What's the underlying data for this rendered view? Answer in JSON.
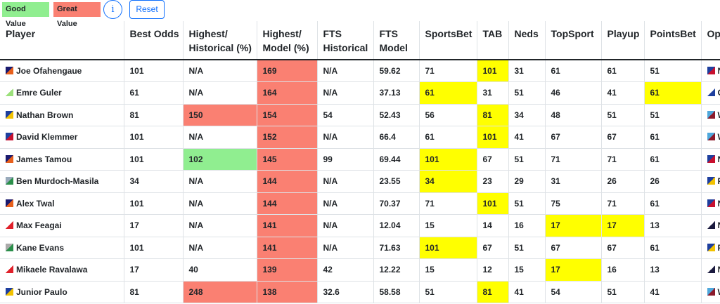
{
  "legend": {
    "good": "Good Value",
    "great": "Great Value"
  },
  "buttons": {
    "info": "i",
    "reset": "Reset"
  },
  "table": {
    "headers": [
      "Player",
      "Best Odds",
      "Highest/\nHistorical (%)",
      "Highest/\nModel (%)",
      "FTS\nHistorical",
      "FTS\nModel",
      "SportsBet",
      "TAB",
      "Neds",
      "TopSport",
      "Playup",
      "PointsBet",
      "Op"
    ],
    "rows": [
      {
        "cells": [
          "Joe Ofahengaue",
          101,
          "N/A",
          169,
          "N/A",
          59.62,
          71,
          101,
          31,
          61,
          61,
          51,
          "N"
        ],
        "great": [
          3
        ],
        "best": [
          7
        ]
      },
      {
        "cells": [
          "Emre Guler",
          61,
          "N/A",
          164,
          "N/A",
          37.13,
          61,
          31,
          51,
          46,
          41,
          61,
          "C"
        ],
        "great": [
          3
        ],
        "best": [
          6,
          11
        ]
      },
      {
        "cells": [
          "Nathan Brown",
          81,
          150,
          154,
          54,
          52.43,
          56,
          81,
          34,
          48,
          51,
          51,
          "W"
        ],
        "great": [
          2,
          3
        ],
        "best": [
          7
        ]
      },
      {
        "cells": [
          "David Klemmer",
          101,
          "N/A",
          152,
          "N/A",
          66.4,
          61,
          101,
          41,
          67,
          67,
          61,
          "W"
        ],
        "great": [
          3
        ],
        "best": [
          7
        ]
      },
      {
        "cells": [
          "James Tamou",
          101,
          102,
          145,
          99,
          69.44,
          101,
          67,
          51,
          71,
          71,
          61,
          "N"
        ],
        "good": [
          2
        ],
        "great": [
          3
        ],
        "best": [
          6
        ]
      },
      {
        "cells": [
          "Ben Murdoch-Masila",
          34,
          "N/A",
          144,
          "N/A",
          23.55,
          34,
          23,
          29,
          31,
          26,
          26,
          "F"
        ],
        "great": [
          3
        ],
        "best": [
          6
        ]
      },
      {
        "cells": [
          "Alex Twal",
          101,
          "N/A",
          144,
          "N/A",
          70.37,
          71,
          101,
          51,
          75,
          71,
          61,
          "N"
        ],
        "great": [
          3
        ],
        "best": [
          7
        ]
      },
      {
        "cells": [
          "Max Feagai",
          17,
          "N/A",
          141,
          "N/A",
          12.04,
          15,
          14,
          16,
          17,
          17,
          13,
          "N"
        ],
        "great": [
          3
        ],
        "best": [
          9,
          10
        ]
      },
      {
        "cells": [
          "Kane Evans",
          101,
          "N/A",
          141,
          "N/A",
          71.63,
          101,
          67,
          51,
          67,
          67,
          61,
          "F"
        ],
        "great": [
          3
        ],
        "best": [
          6
        ]
      },
      {
        "cells": [
          "Mikaele Ravalawa",
          17,
          40,
          139,
          42,
          12.22,
          15,
          12,
          15,
          17,
          16,
          13,
          "N"
        ],
        "great": [
          3
        ],
        "best": [
          9
        ]
      },
      {
        "cells": [
          "Junior Paulo",
          81,
          248,
          138,
          32.6,
          58.58,
          51,
          81,
          41,
          54,
          51,
          41,
          "W"
        ],
        "great": [
          2,
          3
        ],
        "best": [
          7
        ]
      }
    ]
  }
}
